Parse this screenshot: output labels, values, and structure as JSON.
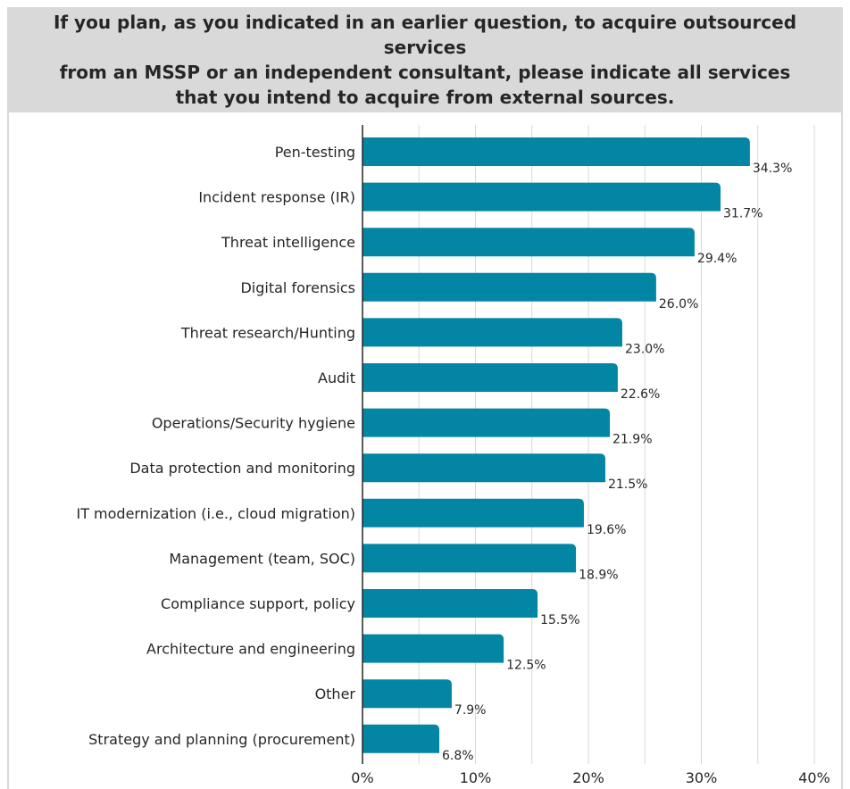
{
  "header": {
    "title": "If you plan, as you indicated in an earlier question, to acquire outsourced services\nfrom an MSSP or an independent consultant, please indicate all services\nthat you intend to acquire from external sources."
  },
  "colors": {
    "bar": "#0386a3",
    "header_bg": "#d9d9d9",
    "grid": "#d9d9d9",
    "axis": "#262626"
  },
  "chart_data": {
    "type": "bar",
    "orientation": "horizontal",
    "title": "If you plan, as you indicated in an earlier question, to acquire outsourced services from an MSSP or an independent consultant, please indicate all services that you intend to acquire from external sources.",
    "categories": [
      "Pen-testing",
      "Incident response (IR)",
      "Threat intelligence",
      "Digital forensics",
      "Threat research/Hunting",
      "Audit",
      "Operations/Security hygiene",
      "Data protection and monitoring",
      "IT modernization (i.e., cloud migration)",
      "Management (team, SOC)",
      "Compliance support, policy",
      "Architecture and engineering",
      "Other",
      "Strategy and planning (procurement)"
    ],
    "values": [
      34.3,
      31.7,
      29.4,
      26.0,
      23.0,
      22.6,
      21.9,
      21.5,
      19.6,
      18.9,
      15.5,
      12.5,
      7.9,
      6.8
    ],
    "value_labels": [
      "34.3%",
      "31.7%",
      "29.4%",
      "26.0%",
      "23.0%",
      "22.6%",
      "21.9%",
      "21.5%",
      "19.6%",
      "18.9%",
      "15.5%",
      "12.5%",
      "7.9%",
      "6.8%"
    ],
    "xlim": [
      0,
      40
    ],
    "xticks": [
      0,
      10,
      20,
      30,
      40
    ],
    "xtick_labels": [
      "0%",
      "10%",
      "20%",
      "30%",
      "40%"
    ],
    "grid": "vertical",
    "xlabel": "",
    "ylabel": ""
  }
}
